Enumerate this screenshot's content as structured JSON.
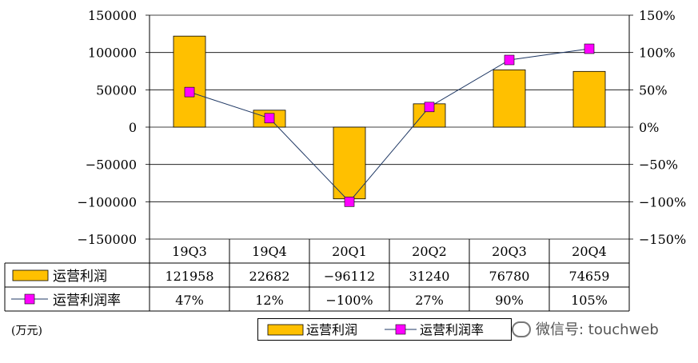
{
  "chart_data": {
    "type": "bar+line",
    "categories": [
      "19Q3",
      "19Q4",
      "20Q1",
      "20Q2",
      "20Q3",
      "20Q4"
    ],
    "series": [
      {
        "name": "运营利润",
        "type": "bar",
        "axis": "left",
        "values": [
          121958,
          22682,
          -96112,
          31240,
          76780,
          74659
        ],
        "labels": [
          "121958",
          "22682",
          "−96112",
          "31240",
          "76780",
          "74659"
        ],
        "color": "#FFC000"
      },
      {
        "name": "运营利润率",
        "type": "line",
        "axis": "right",
        "values": [
          47,
          12,
          -100,
          27,
          90,
          105
        ],
        "labels": [
          "47%",
          "12%",
          "−100%",
          "27%",
          "90%",
          "105%"
        ],
        "color": "#FF00FF",
        "line_color": "#1F3864"
      }
    ],
    "y_left": {
      "min": -150000,
      "max": 150000,
      "step": 50000,
      "ticks": [
        "150000",
        "100000",
        "50000",
        "0",
        "−50000",
        "−100000",
        "−150000"
      ]
    },
    "y_right": {
      "min": -150,
      "max": 150,
      "step": 50,
      "ticks": [
        "150%",
        "100%",
        "50%",
        "0%",
        "−50%",
        "−100%",
        "−150%"
      ]
    },
    "grid": true,
    "legend_position": "bottom-center"
  },
  "unit_label": "(万元)",
  "watermark": "微信号: touchweb"
}
